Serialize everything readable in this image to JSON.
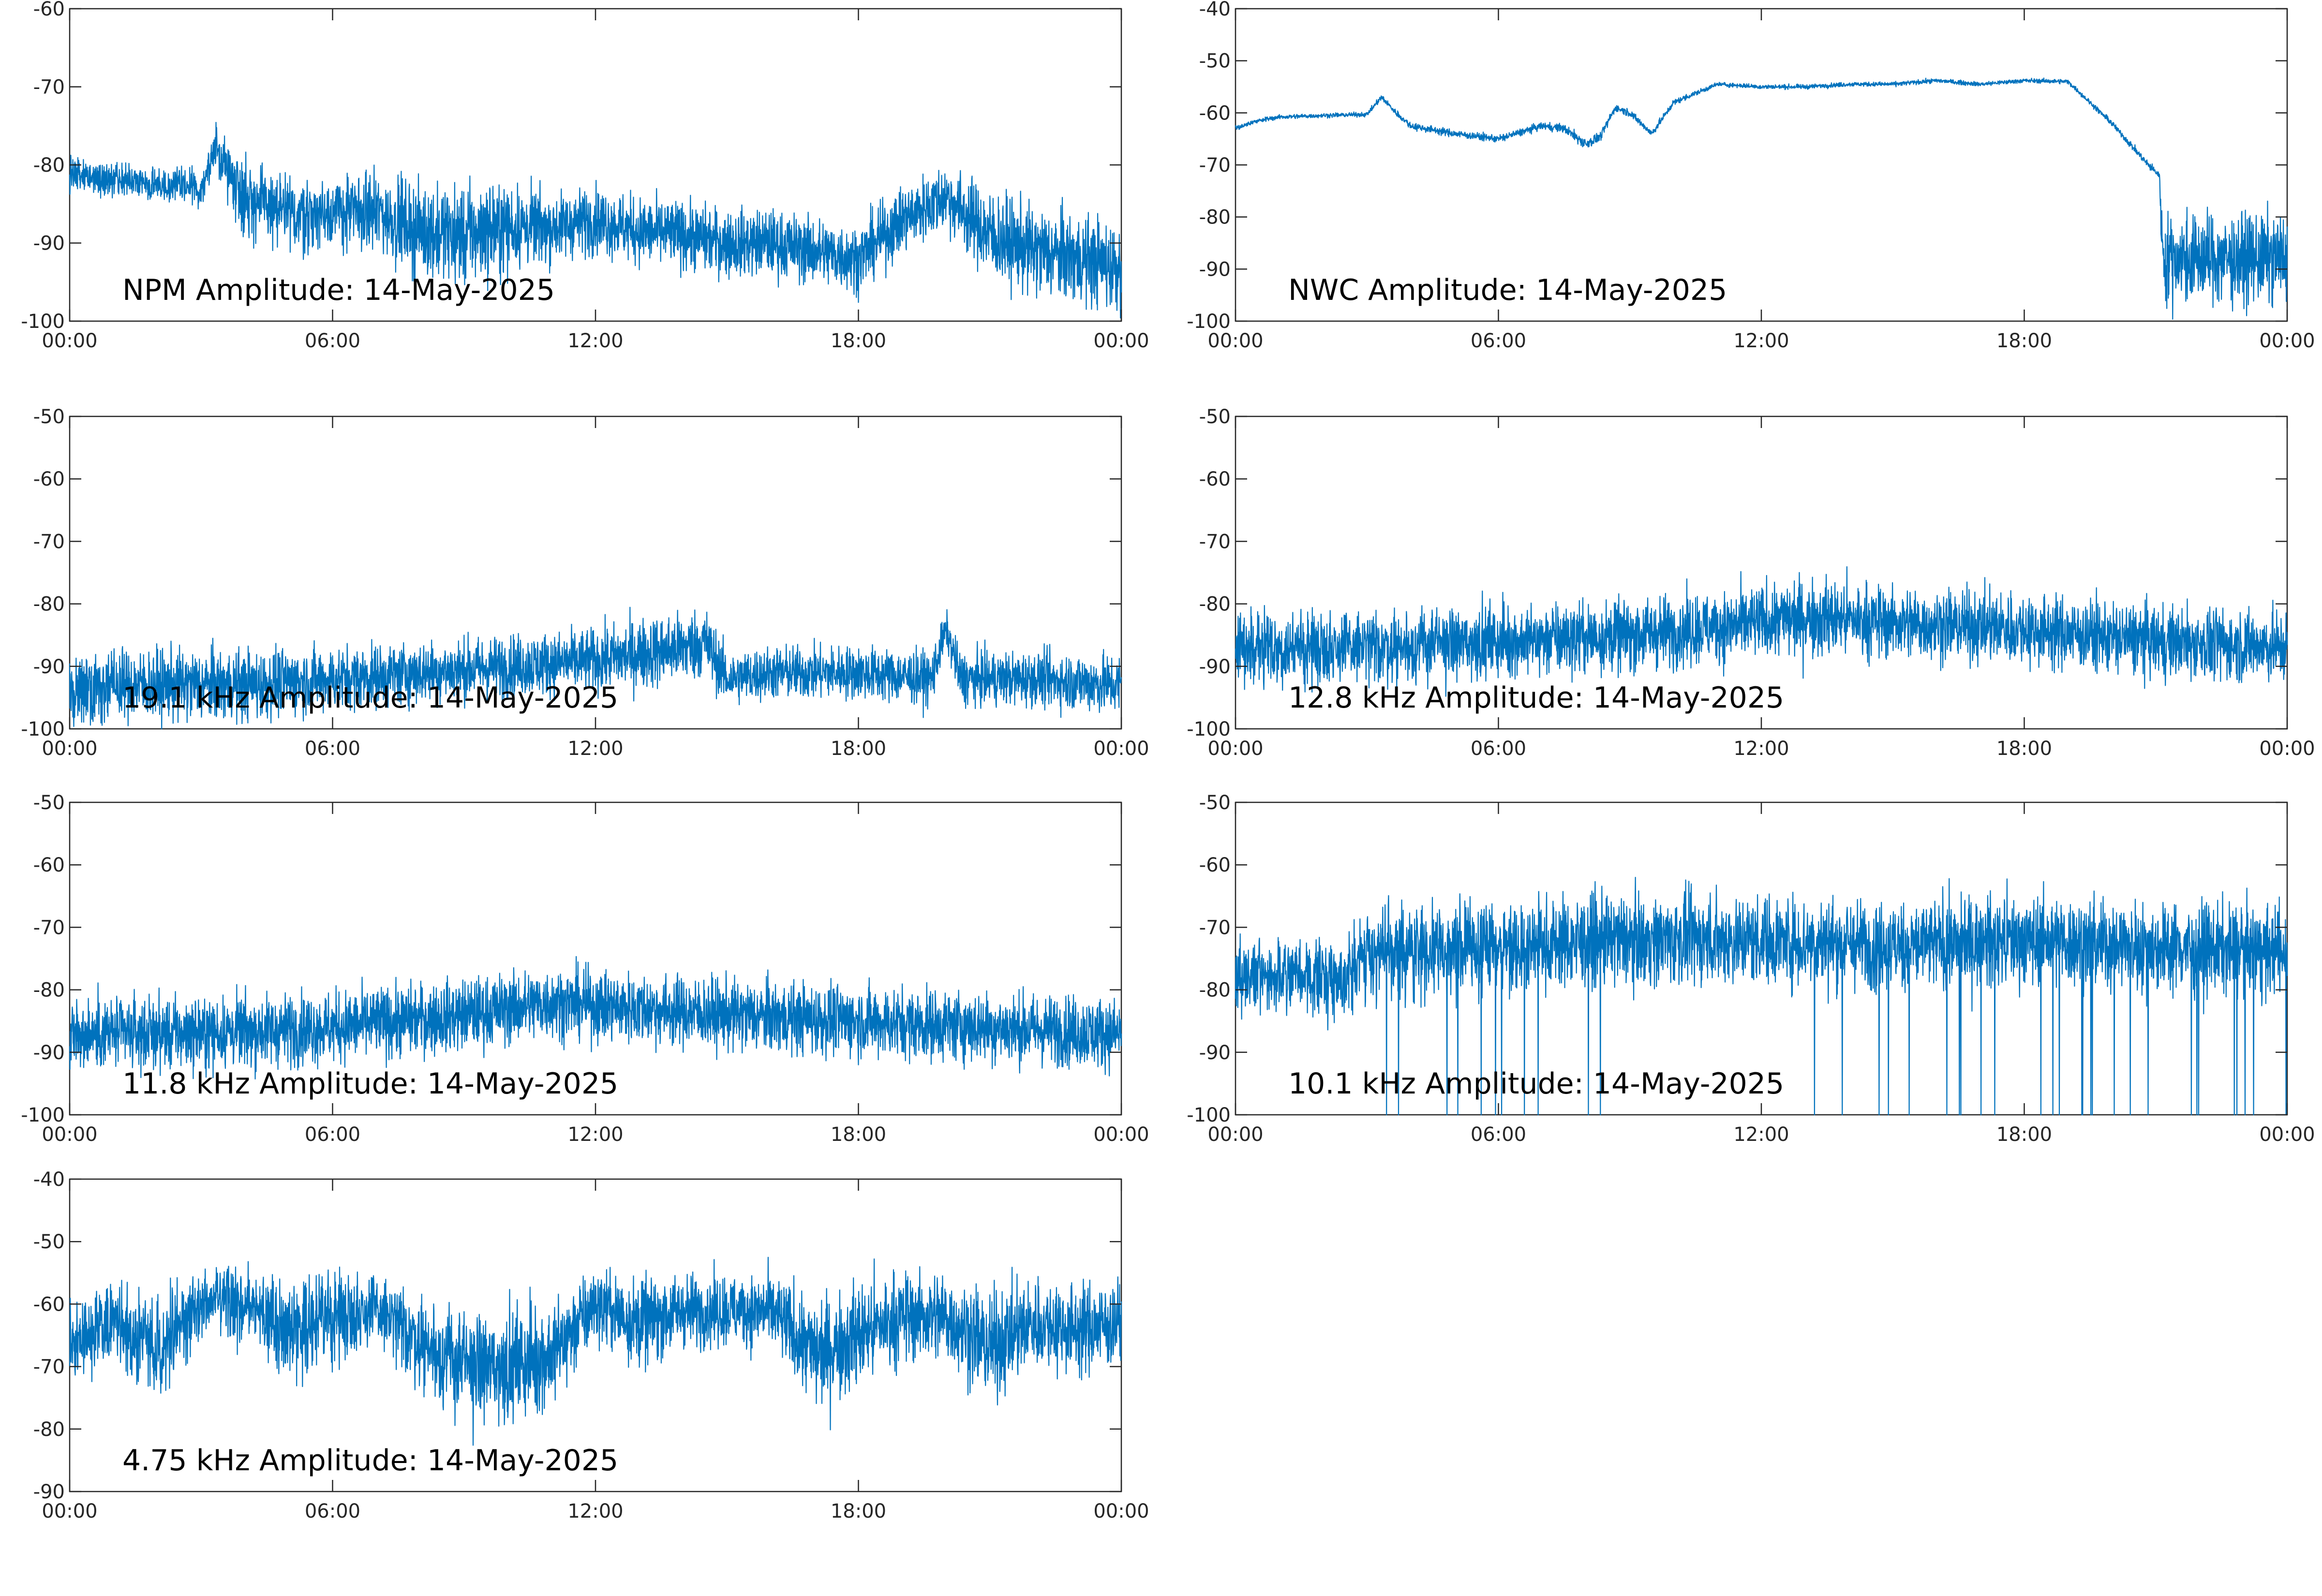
{
  "colors": {
    "trace": "#0072BD",
    "axis": "#262626"
  },
  "chart_data": [
    {
      "type": "line",
      "title": "NPM Amplitude: 14-May-2025",
      "ylim": [
        -100,
        -60
      ],
      "yticks": [
        "-60",
        "-70",
        "-80",
        "-90",
        "-100"
      ],
      "xticks": [
        "00:00",
        "06:00",
        "12:00",
        "18:00",
        "00:00"
      ],
      "grid": false,
      "x": [
        "00:00",
        "01:00",
        "02:00",
        "03:00",
        "03:20",
        "04:00",
        "05:00",
        "06:00",
        "07:00",
        "08:00",
        "09:00",
        "10:00",
        "11:00",
        "12:00",
        "13:00",
        "14:00",
        "15:00",
        "16:00",
        "17:00",
        "18:00",
        "19:00",
        "20:00",
        "21:00",
        "22:00",
        "23:00",
        "24:00"
      ],
      "values": [
        -81,
        -82,
        -82.5,
        -83,
        -78,
        -84,
        -86.5,
        -86,
        -86,
        -88.5,
        -89,
        -88,
        -88,
        -87,
        -88.5,
        -89,
        -90,
        -90,
        -91,
        -92,
        -87,
        -84,
        -89,
        -91,
        -92,
        -93
      ],
      "noise": [
        1.5,
        1.5,
        1.5,
        1.8,
        2,
        3.5,
        3.5,
        3,
        3.5,
        4,
        4.5,
        4,
        3,
        3,
        3,
        3,
        3,
        3,
        3,
        3,
        3,
        3,
        4,
        4,
        4,
        4
      ]
    },
    {
      "type": "line",
      "title": "NWC Amplitude: 14-May-2025",
      "ylim": [
        -100,
        -40
      ],
      "yticks": [
        "-40",
        "-50",
        "-60",
        "-70",
        "-80",
        "-90",
        "-100"
      ],
      "xticks": [
        "00:00",
        "06:00",
        "12:00",
        "18:00",
        "00:00"
      ],
      "grid": false,
      "x": [
        "00:00",
        "00:30",
        "01:00",
        "02:00",
        "03:00",
        "03:20",
        "03:40",
        "04:00",
        "05:00",
        "06:00",
        "07:00",
        "07:30",
        "08:00",
        "08:20",
        "08:40",
        "09:00",
        "09:30",
        "10:00",
        "11:00",
        "12:00",
        "13:00",
        "14:00",
        "15:00",
        "16:00",
        "17:00",
        "18:00",
        "19:00",
        "20:00",
        "20:50",
        "21:05",
        "21:10",
        "22:00",
        "23:00",
        "24:00"
      ],
      "values": [
        -63,
        -61.5,
        -60.8,
        -60.5,
        -60.3,
        -57,
        -60,
        -62.5,
        -64,
        -65,
        -62.5,
        -63,
        -66,
        -64.5,
        -59,
        -60,
        -64,
        -58,
        -54.5,
        -55,
        -55,
        -54.5,
        -54.5,
        -53.8,
        -54.5,
        -53.8,
        -54,
        -62,
        -70,
        -72,
        -88,
        -88,
        -88,
        -88
      ],
      "noise": [
        0.3,
        0.3,
        0.3,
        0.3,
        0.3,
        0.4,
        0.4,
        0.5,
        0.5,
        0.5,
        0.5,
        0.6,
        0.8,
        0.6,
        0.5,
        0.5,
        0.5,
        0.4,
        0.3,
        0.3,
        0.3,
        0.3,
        0.3,
        0.3,
        0.3,
        0.3,
        0.3,
        0.4,
        0.5,
        0.5,
        6,
        6,
        6,
        6
      ]
    },
    {
      "type": "line",
      "title": "19.1 kHz Amplitude: 14-May-2025",
      "ylim": [
        -100,
        -50
      ],
      "yticks": [
        "-50",
        "-60",
        "-70",
        "-80",
        "-90",
        "-100"
      ],
      "xticks": [
        "00:00",
        "06:00",
        "12:00",
        "18:00",
        "00:00"
      ],
      "grid": false,
      "x": [
        "00:00",
        "02:00",
        "04:00",
        "06:00",
        "08:00",
        "10:00",
        "12:00",
        "13:00",
        "14:00",
        "14:30",
        "15:00",
        "16:00",
        "18:00",
        "19:40",
        "20:00",
        "20:20",
        "22:00",
        "24:00"
      ],
      "values": [
        -93,
        -93,
        -93,
        -92,
        -91,
        -90,
        -89,
        -88,
        -87,
        -86,
        -92,
        -91,
        -91,
        -92,
        -84,
        -92,
        -92,
        -93
      ],
      "noise": [
        4,
        4,
        4,
        3.5,
        3.5,
        3.5,
        3.5,
        4,
        4,
        4,
        3,
        3,
        3,
        3,
        2,
        3,
        3,
        3.5
      ]
    },
    {
      "type": "line",
      "title": "12.8 kHz Amplitude: 14-May-2025",
      "ylim": [
        -100,
        -50
      ],
      "yticks": [
        "-50",
        "-60",
        "-70",
        "-80",
        "-90",
        "-100"
      ],
      "xticks": [
        "00:00",
        "06:00",
        "12:00",
        "18:00",
        "00:00"
      ],
      "grid": false,
      "x": [
        "00:00",
        "03:00",
        "06:00",
        "09:00",
        "12:00",
        "13:00",
        "15:00",
        "18:00",
        "21:00",
        "24:00"
      ],
      "values": [
        -87,
        -87,
        -86,
        -85,
        -83,
        -82,
        -83,
        -84,
        -86,
        -87
      ],
      "noise": [
        4,
        4,
        4,
        4,
        4,
        4.5,
        4,
        4,
        4,
        4
      ]
    },
    {
      "type": "line",
      "title": "11.8 kHz Amplitude: 14-May-2025",
      "ylim": [
        -100,
        -50
      ],
      "yticks": [
        "-50",
        "-60",
        "-70",
        "-80",
        "-90",
        "-100"
      ],
      "xticks": [
        "00:00",
        "06:00",
        "12:00",
        "18:00",
        "00:00"
      ],
      "grid": false,
      "x": [
        "00:00",
        "03:00",
        "06:00",
        "09:00",
        "11:00",
        "13:00",
        "15:00",
        "18:00",
        "21:00",
        "24:00"
      ],
      "values": [
        -87,
        -87,
        -86,
        -84,
        -82,
        -83,
        -84,
        -85,
        -86,
        -87
      ],
      "noise": [
        4,
        4,
        4,
        4,
        4,
        4,
        4,
        4,
        4,
        4
      ]
    },
    {
      "type": "line",
      "title": "10.1 kHz Amplitude: 14-May-2025",
      "ylim": [
        -100,
        -50
      ],
      "yticks": [
        "-50",
        "-60",
        "-70",
        "-80",
        "-90",
        "-100"
      ],
      "xticks": [
        "00:00",
        "06:00",
        "12:00",
        "18:00",
        "00:00"
      ],
      "grid": false,
      "x": [
        "00:00",
        "02:30",
        "03:00",
        "06:00",
        "09:00",
        "12:00",
        "15:00",
        "18:00",
        "21:00",
        "24:00"
      ],
      "values": [
        -78,
        -78,
        -74,
        -73,
        -72,
        -72,
        -73,
        -72,
        -73,
        -74
      ],
      "noise": [
        4,
        4,
        5,
        5,
        5,
        5,
        5,
        5,
        5,
        5
      ],
      "dropouts": true
    },
    {
      "type": "line",
      "title": "4.75 kHz Amplitude: 14-May-2025",
      "ylim": [
        -90,
        -40
      ],
      "yticks": [
        "-40",
        "-50",
        "-60",
        "-70",
        "-80",
        "-90"
      ],
      "xticks": [
        "00:00",
        "06:00",
        "12:00",
        "18:00",
        "00:00"
      ],
      "grid": false,
      "x": [
        "00:00",
        "01:00",
        "02:00",
        "03:00",
        "04:00",
        "05:00",
        "06:00",
        "07:00",
        "08:00",
        "09:00",
        "10:00",
        "11:00",
        "12:00",
        "13:00",
        "14:00",
        "15:00",
        "16:00",
        "17:00",
        "18:00",
        "19:00",
        "20:00",
        "21:00",
        "22:00",
        "23:00",
        "24:00"
      ],
      "values": [
        -66,
        -63,
        -67,
        -60,
        -60,
        -64,
        -62,
        -61,
        -66,
        -70,
        -70,
        -68,
        -60,
        -63,
        -61,
        -61,
        -61,
        -68,
        -65,
        -62,
        -62,
        -67,
        -63,
        -64,
        -63
      ],
      "noise": [
        4,
        5,
        5,
        4,
        4,
        5,
        5,
        4,
        5,
        6,
        6,
        6,
        4,
        5,
        4,
        4,
        4,
        6,
        6,
        5,
        5,
        6,
        5,
        5,
        5
      ]
    }
  ]
}
